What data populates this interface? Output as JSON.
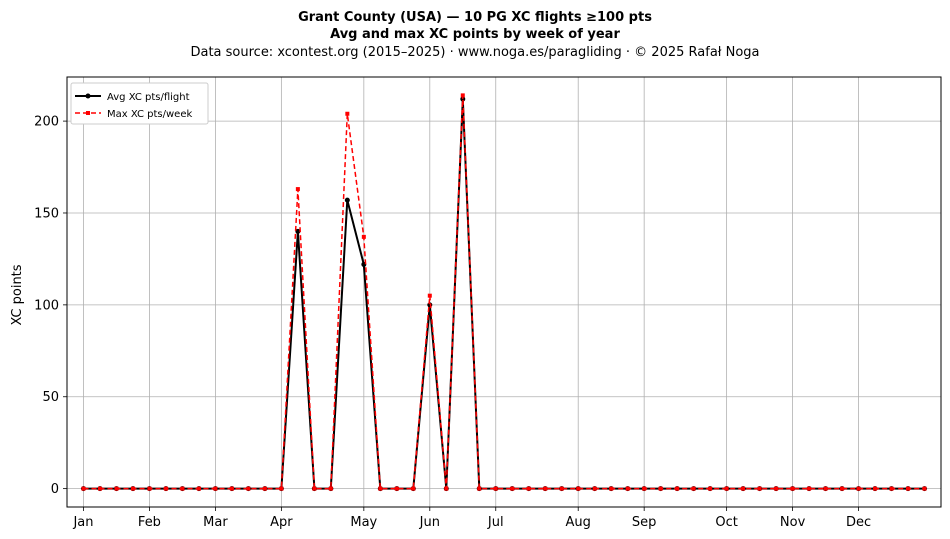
{
  "chart_data": {
    "type": "line",
    "title": "Grant County (USA)  —  10 PG XC flights ≥100 pts",
    "subtitle": "Avg and max XC points by week of year",
    "source_line": "Data source: xcontest.org (2015–2025)  ·  www.noga.es/paragliding  ·  © 2025 Rafał Noga",
    "xlabel": "",
    "ylabel": "XC points",
    "xlim": [
      0,
      53
    ],
    "ylim": [
      -10,
      224
    ],
    "grid": true,
    "legend_position": "top-left",
    "x_ticks": [
      {
        "label": "Jan",
        "week": 1
      },
      {
        "label": "Feb",
        "week": 5
      },
      {
        "label": "Mar",
        "week": 9
      },
      {
        "label": "Apr",
        "week": 13
      },
      {
        "label": "May",
        "week": 18
      },
      {
        "label": "Jun",
        "week": 22
      },
      {
        "label": "Jul",
        "week": 26
      },
      {
        "label": "Aug",
        "week": 31
      },
      {
        "label": "Sep",
        "week": 35
      },
      {
        "label": "Oct",
        "week": 40
      },
      {
        "label": "Nov",
        "week": 44
      },
      {
        "label": "Dec",
        "week": 48
      }
    ],
    "y_ticks": [
      0,
      50,
      100,
      150,
      200
    ],
    "x": [
      1,
      2,
      3,
      4,
      5,
      6,
      7,
      8,
      9,
      10,
      11,
      12,
      13,
      14,
      15,
      16,
      17,
      18,
      19,
      20,
      21,
      22,
      23,
      24,
      25,
      26,
      27,
      28,
      29,
      30,
      31,
      32,
      33,
      34,
      35,
      36,
      37,
      38,
      39,
      40,
      41,
      42,
      43,
      44,
      45,
      46,
      47,
      48,
      49,
      50,
      51,
      52
    ],
    "series": [
      {
        "name": "Avg XC pts/flight",
        "color": "#000000",
        "style": "solid",
        "marker": "circle",
        "values": [
          0,
          0,
          0,
          0,
          0,
          0,
          0,
          0,
          0,
          0,
          0,
          0,
          0,
          140,
          0,
          0,
          157,
          122,
          0,
          0,
          0,
          100,
          0,
          212,
          0,
          0,
          0,
          0,
          0,
          0,
          0,
          0,
          0,
          0,
          0,
          0,
          0,
          0,
          0,
          0,
          0,
          0,
          0,
          0,
          0,
          0,
          0,
          0,
          0,
          0,
          0,
          0
        ]
      },
      {
        "name": "Max XC pts/week",
        "color": "#ff0000",
        "style": "dashed",
        "marker": "square",
        "values": [
          0,
          0,
          0,
          0,
          0,
          0,
          0,
          0,
          0,
          0,
          0,
          0,
          0,
          163,
          0,
          0,
          204,
          137,
          0,
          0,
          0,
          105,
          0,
          214,
          0,
          0,
          0,
          0,
          0,
          0,
          0,
          0,
          0,
          0,
          0,
          0,
          0,
          0,
          0,
          0,
          0,
          0,
          0,
          0,
          0,
          0,
          0,
          0,
          0,
          0,
          0,
          0
        ]
      }
    ]
  }
}
